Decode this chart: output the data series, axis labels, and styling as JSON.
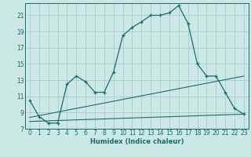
{
  "xlabel": "Humidex (Indice chaleur)",
  "bg_color": "#cce8e4",
  "grid_color": "#aaccca",
  "line_color": "#1a6b6b",
  "xlim": [
    -0.5,
    23.5
  ],
  "ylim": [
    7,
    22.5
  ],
  "xticks": [
    0,
    1,
    2,
    3,
    4,
    5,
    6,
    7,
    8,
    9,
    10,
    11,
    12,
    13,
    14,
    15,
    16,
    17,
    18,
    19,
    20,
    21,
    22,
    23
  ],
  "yticks": [
    7,
    9,
    11,
    13,
    15,
    17,
    19,
    21
  ],
  "main_x": [
    0,
    1,
    2,
    3,
    4,
    5,
    6,
    7,
    8,
    9,
    10,
    11,
    12,
    13,
    14,
    15,
    16,
    17,
    18,
    19,
    20,
    21,
    22,
    23
  ],
  "main_y": [
    10.5,
    8.5,
    7.7,
    7.7,
    12.5,
    13.5,
    12.8,
    11.5,
    11.5,
    14.0,
    18.5,
    19.5,
    20.2,
    21.0,
    21.0,
    21.3,
    22.2,
    20.0,
    15.0,
    13.5,
    13.5,
    11.5,
    9.5,
    8.8
  ],
  "line2_x": [
    0,
    23
  ],
  "line2_y": [
    7.9,
    8.8
  ],
  "line3_x": [
    0,
    23
  ],
  "line3_y": [
    8.4,
    13.5
  ]
}
